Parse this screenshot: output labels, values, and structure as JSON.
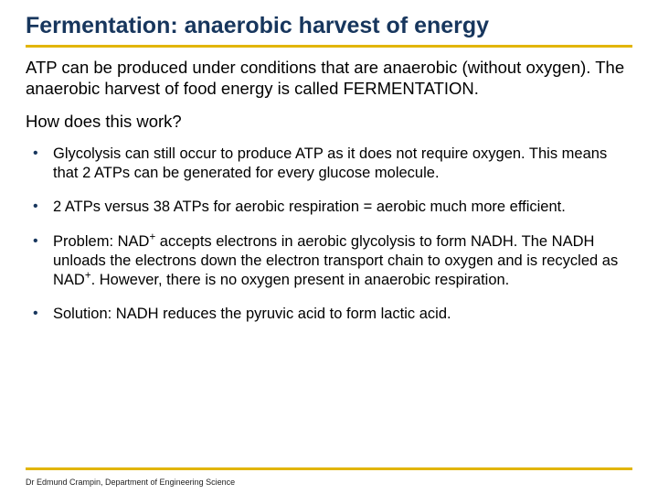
{
  "colors": {
    "title": "#17365d",
    "accent_line": "#e2b500",
    "body_text": "#000000",
    "bullet_marker": "#17365d",
    "background": "#ffffff"
  },
  "typography": {
    "title_fontsize": 25,
    "intro_fontsize": 18.5,
    "bullet_fontsize": 16.5,
    "footer_fontsize": 9,
    "title_weight": "bold"
  },
  "title": "Fermentation: anaerobic harvest of energy",
  "intro": "ATP can be produced under conditions that are anaerobic (without oxygen). The anaerobic harvest of food energy is called FERMENTATION.",
  "question": "How does this work?",
  "bullets": [
    {
      "html": "Glycolysis can still occur to produce ATP as it does not require oxygen. This means that 2 ATPs can be generated for every glucose molecule."
    },
    {
      "html": " 2 ATPs versus 38 ATPs for aerobic respiration = aerobic much more efficient."
    },
    {
      "html": "Problem: NAD<sup>+</sup> accepts electrons in aerobic glycolysis to form NADH. The NADH unloads the electrons down the electron transport chain to oxygen and is recycled as NAD<sup>+</sup>. However, there is no oxygen present in anaerobic respiration."
    },
    {
      "html": "Solution: NADH reduces the pyruvic acid to form lactic acid."
    }
  ],
  "footer": "Dr Edmund Crampin, Department of Engineering Science"
}
